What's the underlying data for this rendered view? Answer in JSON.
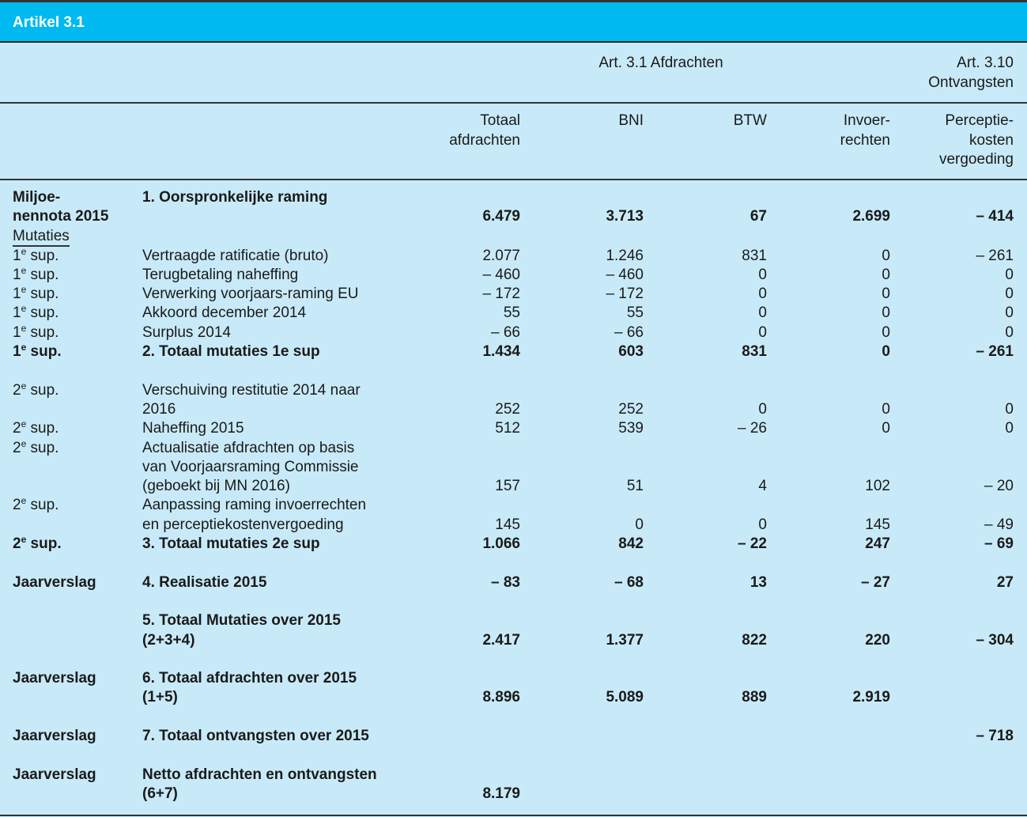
{
  "title": "Artikel 3.1",
  "groups": {
    "afdrachten": "Art. 3.1 Afdrachten",
    "ontvangsten": [
      "Art. 3.10",
      "Ontvangsten"
    ]
  },
  "columns": [
    [
      "Totaal",
      "afdrachten"
    ],
    [
      "BNI"
    ],
    [
      "BTW"
    ],
    [
      "Invoer-",
      "rechten"
    ],
    [
      "Perceptie-",
      "kosten",
      "vergoeding"
    ]
  ],
  "rows": [
    {
      "label": [
        "Miljoe-",
        "nennota 2015"
      ],
      "desc": [
        "1. Oorspronkelijke raming"
      ],
      "values": [
        "6.479",
        "3.713",
        "67",
        "2.699",
        "– 414"
      ],
      "style": "labbold descbold valbold"
    },
    {
      "label": [
        "Mutaties"
      ],
      "underline": true,
      "desc": [],
      "values": []
    },
    {
      "sup": [
        "1",
        "e",
        " sup."
      ],
      "desc": [
        "Vertraagde ratificatie (bruto)"
      ],
      "values": [
        "2.077",
        "1.246",
        "831",
        "0",
        "– 261"
      ]
    },
    {
      "sup": [
        "1",
        "e",
        " sup."
      ],
      "desc": [
        "Terugbetaling naheffing"
      ],
      "values": [
        "– 460",
        "– 460",
        "0",
        "0",
        "0"
      ]
    },
    {
      "sup": [
        "1",
        "e",
        " sup."
      ],
      "desc": [
        "Verwerking voorjaars-raming EU"
      ],
      "values": [
        "– 172",
        "– 172",
        "0",
        "0",
        "0"
      ]
    },
    {
      "sup": [
        "1",
        "e",
        " sup."
      ],
      "desc": [
        "Akkoord december 2014"
      ],
      "values": [
        "55",
        "55",
        "0",
        "0",
        "0"
      ]
    },
    {
      "sup": [
        "1",
        "e",
        " sup."
      ],
      "desc": [
        "Surplus 2014"
      ],
      "values": [
        "– 66",
        "– 66",
        "0",
        "0",
        "0"
      ]
    },
    {
      "sup": [
        "1",
        "e",
        " sup."
      ],
      "desc": [
        "2. Totaal mutaties 1e sup"
      ],
      "values": [
        "1.434",
        "603",
        "831",
        "0",
        "– 261"
      ],
      "style": "bold"
    },
    {
      "sup": [
        "2",
        "e",
        " sup."
      ],
      "desc": [
        "Verschuiving restitutie 2014 naar",
        "2016"
      ],
      "values": [
        "252",
        "252",
        "0",
        "0",
        "0"
      ],
      "spaced": true
    },
    {
      "sup": [
        "2",
        "e",
        " sup."
      ],
      "desc": [
        "Naheffing 2015"
      ],
      "values": [
        "512",
        "539",
        "– 26",
        "0",
        "0"
      ]
    },
    {
      "sup": [
        "2",
        "e",
        " sup."
      ],
      "desc": [
        "Actualisatie afdrachten op basis",
        "van Voorjaarsraming Commissie",
        "(geboekt bij MN 2016)"
      ],
      "values": [
        "157",
        "51",
        "4",
        "102",
        "– 20"
      ]
    },
    {
      "sup": [
        "2",
        "e",
        " sup."
      ],
      "desc": [
        "Aanpassing raming invoerrechten",
        "en perceptiekostenvergoeding"
      ],
      "values": [
        "145",
        "0",
        "0",
        "145",
        "– 49"
      ]
    },
    {
      "sup": [
        "2",
        "e",
        " sup."
      ],
      "desc": [
        "3. Totaal mutaties 2e sup"
      ],
      "values": [
        "1.066",
        "842",
        "– 22",
        "247",
        "– 69"
      ],
      "style": "bold"
    },
    {
      "label": [
        "Jaarverslag"
      ],
      "desc": [
        "4. Realisatie 2015"
      ],
      "values": [
        "– 83",
        "– 68",
        "13",
        "– 27",
        "27"
      ],
      "style": "bold",
      "spaced": true
    },
    {
      "label": [],
      "desc": [
        "5. Totaal Mutaties over 2015",
        "(2+3+4)"
      ],
      "values": [
        "2.417",
        "1.377",
        "822",
        "220",
        "– 304"
      ],
      "style": "bold",
      "spaced": true
    },
    {
      "label": [
        "Jaarverslag"
      ],
      "desc": [
        "6. Totaal afdrachten over 2015",
        "(1+5)"
      ],
      "values": [
        "8.896",
        "5.089",
        "889",
        "2.919",
        ""
      ],
      "style": "bold",
      "spaced": true
    },
    {
      "label": [
        "Jaarverslag"
      ],
      "desc": [
        "7. Totaal ontvangsten over 2015"
      ],
      "values": [
        "",
        "",
        "",
        "",
        "– 718"
      ],
      "style": "bold",
      "spaced": true
    },
    {
      "label": [
        "Jaarverslag"
      ],
      "desc": [
        "Netto afdrachten en ontvangsten",
        "(6+7)"
      ],
      "values": [
        "8.179",
        "",
        "",
        "",
        ""
      ],
      "style": "bold",
      "spaced": true
    }
  ]
}
